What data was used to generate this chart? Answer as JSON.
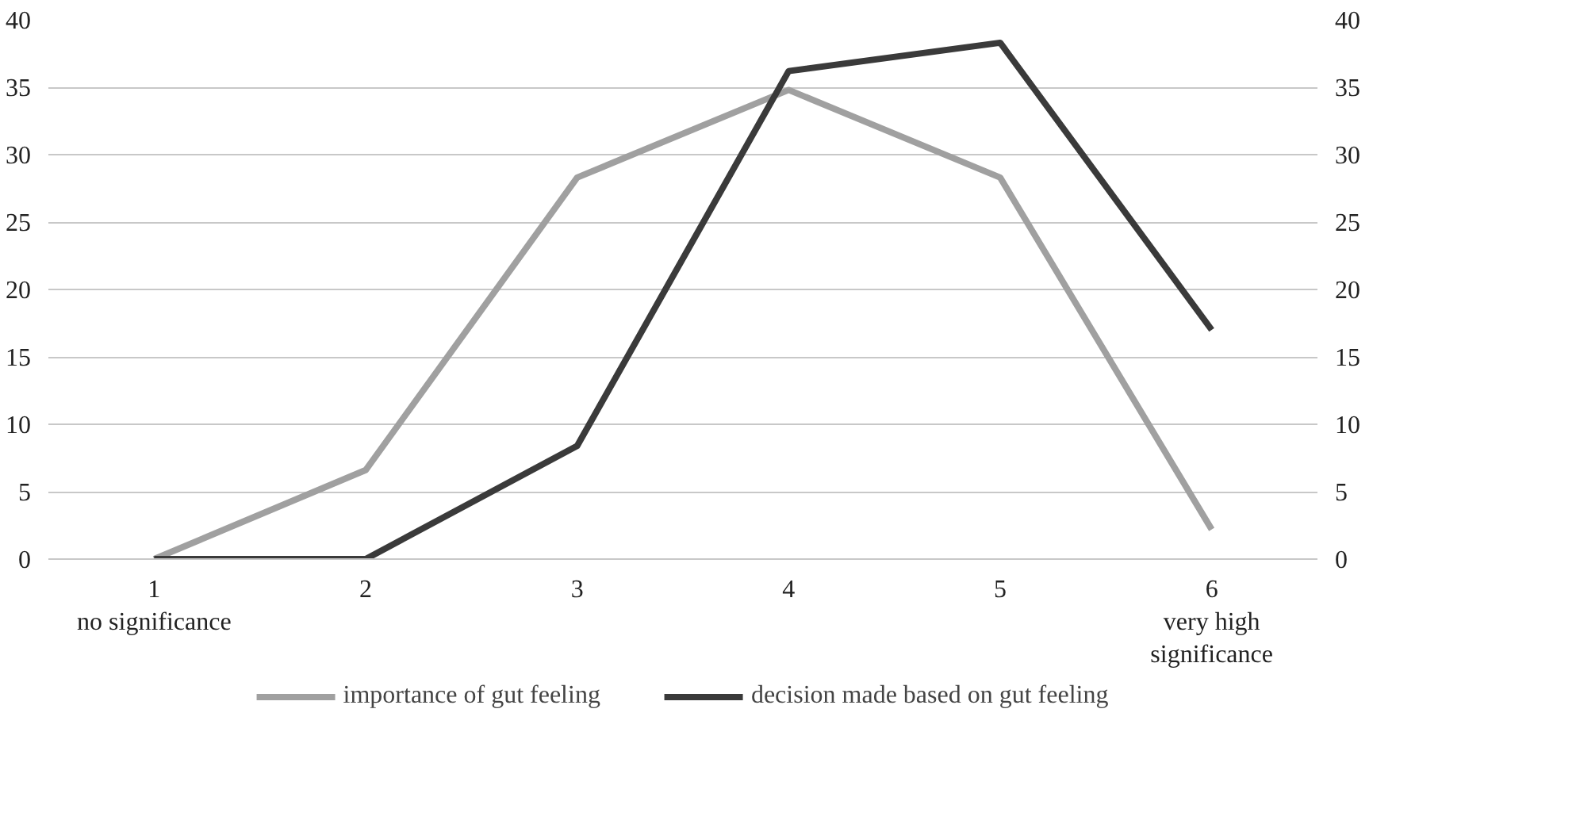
{
  "chart_data": {
    "type": "line",
    "categories": [
      "1\nno significance",
      "2",
      "3",
      "4",
      "5",
      "6\nvery high\nsignificance"
    ],
    "series": [
      {
        "name": "importance of gut feeling",
        "color": "#a0a0a0",
        "values": [
          0,
          6.6,
          28.3,
          34.8,
          28.3,
          2.2
        ]
      },
      {
        "name": "decision made based on gut feeling",
        "color": "#3a3a3a",
        "values": [
          0,
          0,
          8.4,
          36.2,
          38.3,
          17.0
        ]
      }
    ],
    "ylim": [
      0,
      40
    ],
    "yticks": [
      0,
      5,
      10,
      15,
      20,
      25,
      30,
      35,
      40
    ],
    "y2lim": [
      0,
      40
    ],
    "y2ticks": [
      0,
      5,
      10,
      15,
      20,
      25,
      30,
      35,
      40
    ],
    "grid": "y",
    "legend": "bottom",
    "marker": "none",
    "line_style": "solid"
  }
}
